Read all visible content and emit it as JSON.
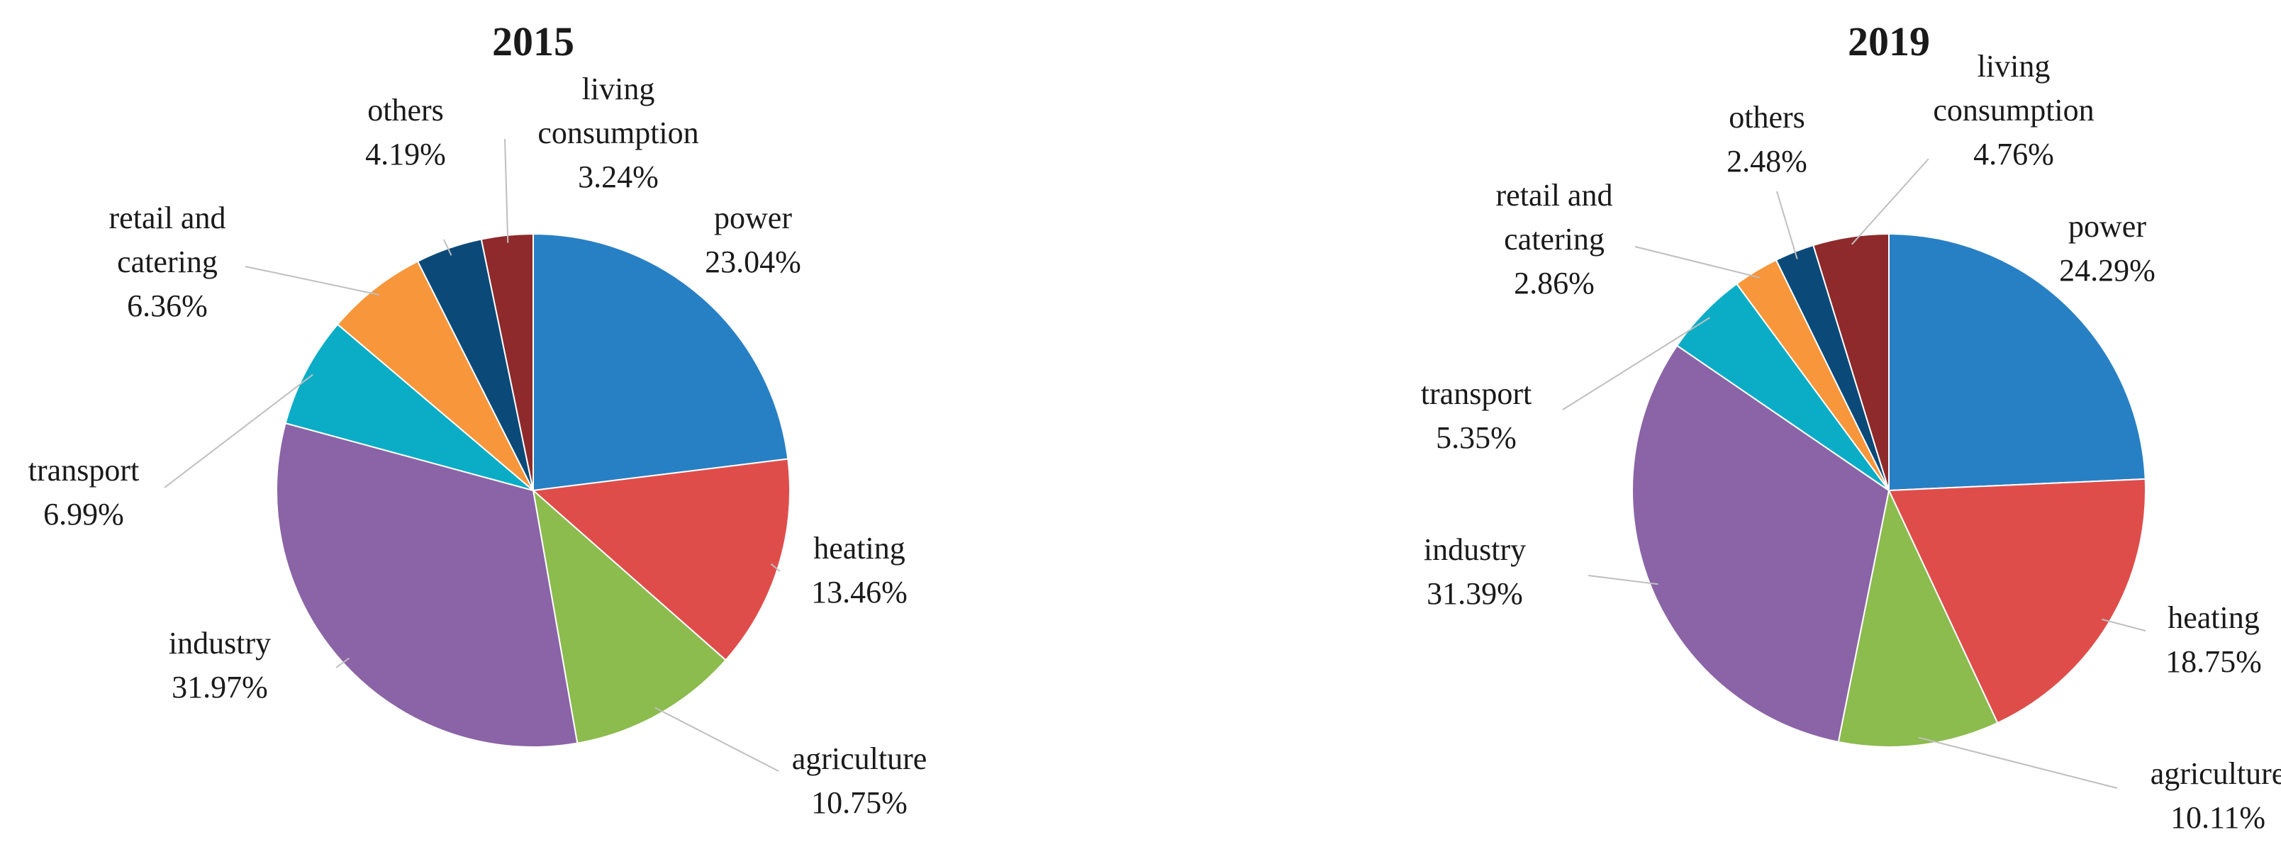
{
  "chart_data": [
    {
      "type": "pie",
      "title": "2015",
      "categories": [
        "power",
        "heating",
        "agriculture",
        "industry",
        "transport",
        "retail and catering",
        "others",
        "living consumption"
      ],
      "values": [
        23.04,
        13.46,
        10.75,
        31.97,
        6.99,
        6.36,
        4.19,
        3.24
      ],
      "value_labels": [
        "23.04%",
        "13.46%",
        "10.75%",
        "31.97%",
        "6.99%",
        "6.36%",
        "4.19%",
        "3.24%"
      ],
      "label_lines": [
        [
          "power"
        ],
        [
          "heating"
        ],
        [
          "agriculture"
        ],
        [
          "industry"
        ],
        [
          "transport"
        ],
        [
          "retail and",
          "catering"
        ],
        [
          "others"
        ],
        [
          "living",
          "consumption"
        ]
      ],
      "colors": [
        "#2880C4",
        "#DF4D4B",
        "#8CBB4E",
        "#8A64A6",
        "#0AADC5",
        "#F7963B",
        "#0B4A78",
        "#8E2A2B"
      ],
      "start": "12 o'clock",
      "direction": "clockwise",
      "legend": "none"
    },
    {
      "type": "pie",
      "title": "2019",
      "categories": [
        "power",
        "heating",
        "agriculture",
        "industry",
        "transport",
        "retail and catering",
        "others",
        "living consumption"
      ],
      "values": [
        24.29,
        18.75,
        10.11,
        31.39,
        5.35,
        2.86,
        2.48,
        4.76
      ],
      "value_labels": [
        "24.29%",
        "18.75%",
        "10.11%",
        "31.39%",
        "5.35%",
        "2.86%",
        "2.48%",
        "4.76%"
      ],
      "label_lines": [
        [
          "power"
        ],
        [
          "heating"
        ],
        [
          "agriculture"
        ],
        [
          "industry"
        ],
        [
          "transport"
        ],
        [
          "retail and",
          "catering"
        ],
        [
          "others"
        ],
        [
          "living",
          "consumption"
        ]
      ],
      "colors": [
        "#2880C4",
        "#DF4D4B",
        "#8CBB4E",
        "#8A64A6",
        "#0AADC5",
        "#F7963B",
        "#0B4A78",
        "#8E2A2B"
      ],
      "start": "12 o'clock",
      "direction": "clockwise",
      "legend": "none"
    }
  ]
}
